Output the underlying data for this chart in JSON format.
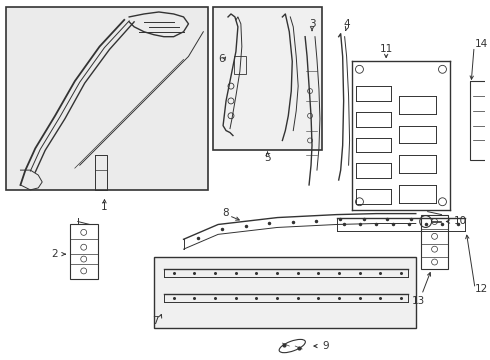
{
  "bg_color": "#ffffff",
  "line_color": "#333333",
  "label_color": "#000000",
  "fig_width": 4.9,
  "fig_height": 3.6,
  "dpi": 100
}
